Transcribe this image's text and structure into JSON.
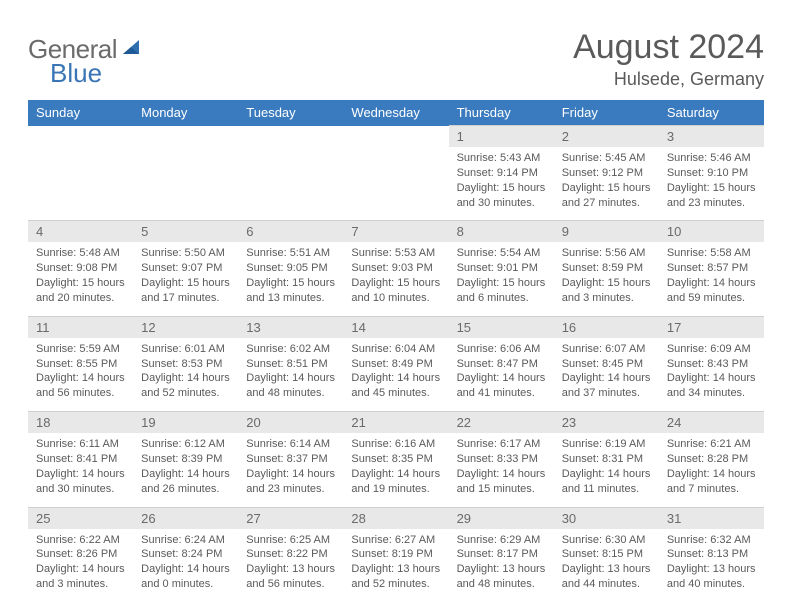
{
  "logo": {
    "general": "General",
    "blue": "Blue"
  },
  "title": "August 2024",
  "location": "Hulsede, Germany",
  "colors": {
    "header_bg": "#3a7bbf",
    "header_text": "#ffffff",
    "daynum_bg": "#e8e8e8",
    "body_text": "#5a5a5a",
    "logo_gray": "#6b6b6b",
    "logo_blue": "#3a75b5"
  },
  "weekdays": [
    "Sunday",
    "Monday",
    "Tuesday",
    "Wednesday",
    "Thursday",
    "Friday",
    "Saturday"
  ],
  "weeks": [
    {
      "nums": [
        "",
        "",
        "",
        "",
        "1",
        "2",
        "3"
      ],
      "cells": [
        null,
        null,
        null,
        null,
        {
          "sr": "Sunrise: 5:43 AM",
          "ss": "Sunset: 9:14 PM",
          "dl": "Daylight: 15 hours and 30 minutes."
        },
        {
          "sr": "Sunrise: 5:45 AM",
          "ss": "Sunset: 9:12 PM",
          "dl": "Daylight: 15 hours and 27 minutes."
        },
        {
          "sr": "Sunrise: 5:46 AM",
          "ss": "Sunset: 9:10 PM",
          "dl": "Daylight: 15 hours and 23 minutes."
        }
      ]
    },
    {
      "nums": [
        "4",
        "5",
        "6",
        "7",
        "8",
        "9",
        "10"
      ],
      "cells": [
        {
          "sr": "Sunrise: 5:48 AM",
          "ss": "Sunset: 9:08 PM",
          "dl": "Daylight: 15 hours and 20 minutes."
        },
        {
          "sr": "Sunrise: 5:50 AM",
          "ss": "Sunset: 9:07 PM",
          "dl": "Daylight: 15 hours and 17 minutes."
        },
        {
          "sr": "Sunrise: 5:51 AM",
          "ss": "Sunset: 9:05 PM",
          "dl": "Daylight: 15 hours and 13 minutes."
        },
        {
          "sr": "Sunrise: 5:53 AM",
          "ss": "Sunset: 9:03 PM",
          "dl": "Daylight: 15 hours and 10 minutes."
        },
        {
          "sr": "Sunrise: 5:54 AM",
          "ss": "Sunset: 9:01 PM",
          "dl": "Daylight: 15 hours and 6 minutes."
        },
        {
          "sr": "Sunrise: 5:56 AM",
          "ss": "Sunset: 8:59 PM",
          "dl": "Daylight: 15 hours and 3 minutes."
        },
        {
          "sr": "Sunrise: 5:58 AM",
          "ss": "Sunset: 8:57 PM",
          "dl": "Daylight: 14 hours and 59 minutes."
        }
      ]
    },
    {
      "nums": [
        "11",
        "12",
        "13",
        "14",
        "15",
        "16",
        "17"
      ],
      "cells": [
        {
          "sr": "Sunrise: 5:59 AM",
          "ss": "Sunset: 8:55 PM",
          "dl": "Daylight: 14 hours and 56 minutes."
        },
        {
          "sr": "Sunrise: 6:01 AM",
          "ss": "Sunset: 8:53 PM",
          "dl": "Daylight: 14 hours and 52 minutes."
        },
        {
          "sr": "Sunrise: 6:02 AM",
          "ss": "Sunset: 8:51 PM",
          "dl": "Daylight: 14 hours and 48 minutes."
        },
        {
          "sr": "Sunrise: 6:04 AM",
          "ss": "Sunset: 8:49 PM",
          "dl": "Daylight: 14 hours and 45 minutes."
        },
        {
          "sr": "Sunrise: 6:06 AM",
          "ss": "Sunset: 8:47 PM",
          "dl": "Daylight: 14 hours and 41 minutes."
        },
        {
          "sr": "Sunrise: 6:07 AM",
          "ss": "Sunset: 8:45 PM",
          "dl": "Daylight: 14 hours and 37 minutes."
        },
        {
          "sr": "Sunrise: 6:09 AM",
          "ss": "Sunset: 8:43 PM",
          "dl": "Daylight: 14 hours and 34 minutes."
        }
      ]
    },
    {
      "nums": [
        "18",
        "19",
        "20",
        "21",
        "22",
        "23",
        "24"
      ],
      "cells": [
        {
          "sr": "Sunrise: 6:11 AM",
          "ss": "Sunset: 8:41 PM",
          "dl": "Daylight: 14 hours and 30 minutes."
        },
        {
          "sr": "Sunrise: 6:12 AM",
          "ss": "Sunset: 8:39 PM",
          "dl": "Daylight: 14 hours and 26 minutes."
        },
        {
          "sr": "Sunrise: 6:14 AM",
          "ss": "Sunset: 8:37 PM",
          "dl": "Daylight: 14 hours and 23 minutes."
        },
        {
          "sr": "Sunrise: 6:16 AM",
          "ss": "Sunset: 8:35 PM",
          "dl": "Daylight: 14 hours and 19 minutes."
        },
        {
          "sr": "Sunrise: 6:17 AM",
          "ss": "Sunset: 8:33 PM",
          "dl": "Daylight: 14 hours and 15 minutes."
        },
        {
          "sr": "Sunrise: 6:19 AM",
          "ss": "Sunset: 8:31 PM",
          "dl": "Daylight: 14 hours and 11 minutes."
        },
        {
          "sr": "Sunrise: 6:21 AM",
          "ss": "Sunset: 8:28 PM",
          "dl": "Daylight: 14 hours and 7 minutes."
        }
      ]
    },
    {
      "nums": [
        "25",
        "26",
        "27",
        "28",
        "29",
        "30",
        "31"
      ],
      "cells": [
        {
          "sr": "Sunrise: 6:22 AM",
          "ss": "Sunset: 8:26 PM",
          "dl": "Daylight: 14 hours and 3 minutes."
        },
        {
          "sr": "Sunrise: 6:24 AM",
          "ss": "Sunset: 8:24 PM",
          "dl": "Daylight: 14 hours and 0 minutes."
        },
        {
          "sr": "Sunrise: 6:25 AM",
          "ss": "Sunset: 8:22 PM",
          "dl": "Daylight: 13 hours and 56 minutes."
        },
        {
          "sr": "Sunrise: 6:27 AM",
          "ss": "Sunset: 8:19 PM",
          "dl": "Daylight: 13 hours and 52 minutes."
        },
        {
          "sr": "Sunrise: 6:29 AM",
          "ss": "Sunset: 8:17 PM",
          "dl": "Daylight: 13 hours and 48 minutes."
        },
        {
          "sr": "Sunrise: 6:30 AM",
          "ss": "Sunset: 8:15 PM",
          "dl": "Daylight: 13 hours and 44 minutes."
        },
        {
          "sr": "Sunrise: 6:32 AM",
          "ss": "Sunset: 8:13 PM",
          "dl": "Daylight: 13 hours and 40 minutes."
        }
      ]
    }
  ]
}
